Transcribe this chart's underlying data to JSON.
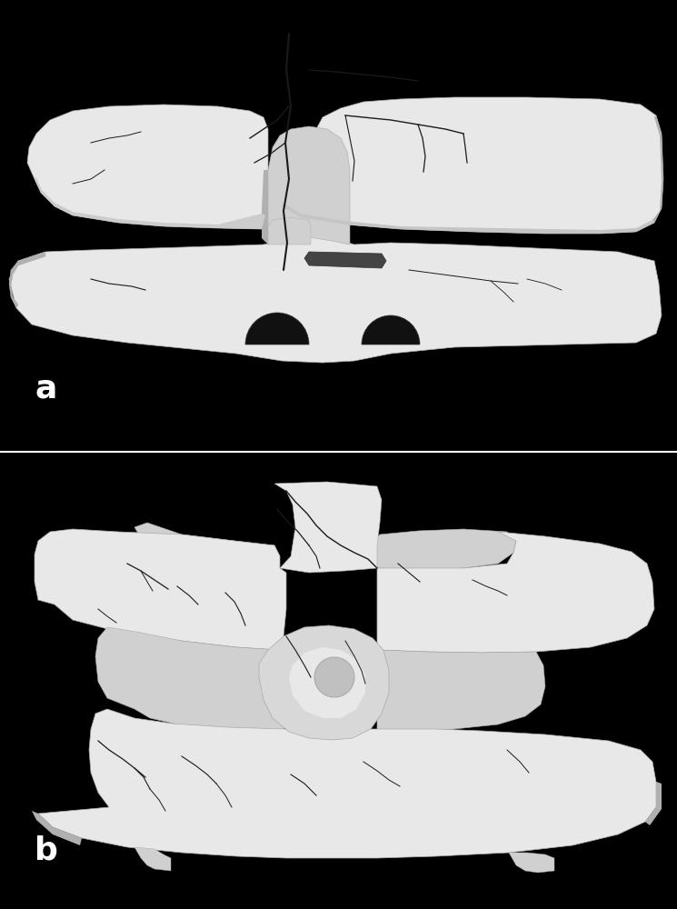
{
  "background_color": "#000000",
  "separator_color": "#ffffff",
  "label_a": "a",
  "label_b": "b",
  "label_color": "#ffffff",
  "label_fontsize": 26,
  "obj_light": "#e8e8e8",
  "obj_mid": "#d0d0d0",
  "obj_dark": "#b0b0b0",
  "obj_shadow": "#888888",
  "crack_color": "#1a1a1a",
  "edge_color": "#aaaaaa"
}
